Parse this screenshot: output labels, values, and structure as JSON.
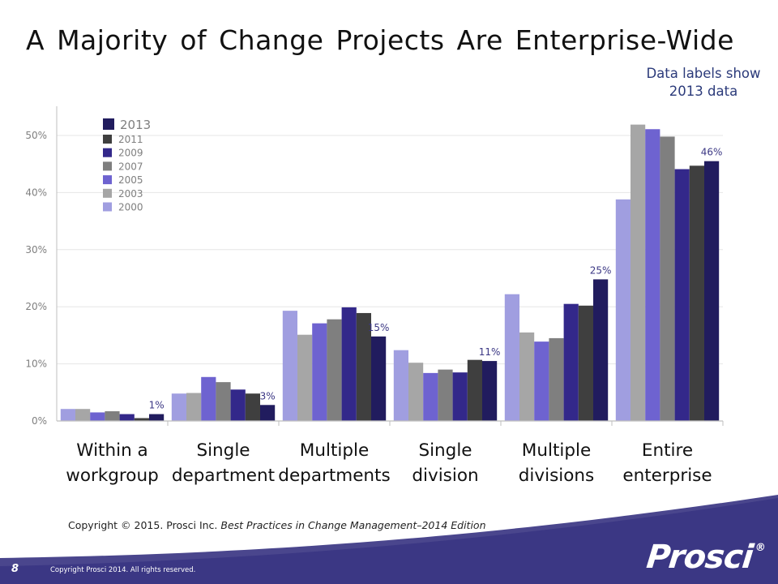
{
  "slide": {
    "title": "A Majority of Change Projects Are Enterprise-Wide",
    "label_note": [
      "Data labels show",
      "2013 data"
    ],
    "copyright_prefix": "Copyright © 2015. Prosci Inc.",
    "copyright_source": "Best Practices in Change Management–2014 Edition",
    "slide_number": "8",
    "footer_copyright": "Copyright Prosci 2014. All rights reserved.",
    "brand": "Prosci",
    "brand_mark": "®"
  },
  "chart_data": {
    "type": "bar",
    "title": "",
    "xlabel": "",
    "ylabel": "",
    "ylim": [
      0,
      55
    ],
    "yticks": [
      0,
      10,
      20,
      30,
      40,
      50
    ],
    "ytick_labels": [
      "0%",
      "10%",
      "20%",
      "30%",
      "40%",
      "50%"
    ],
    "categories": [
      [
        "Within a",
        "workgroup"
      ],
      [
        "Single",
        "department"
      ],
      [
        "Multiple",
        "departments"
      ],
      [
        "Single",
        "division"
      ],
      [
        "Multiple",
        "divisions"
      ],
      [
        "Entire",
        "enterprise"
      ]
    ],
    "grid": true,
    "legend_position": "top-left",
    "series": [
      {
        "name": "2000",
        "color": "#a09ee0",
        "values": [
          2.1,
          4.8,
          19.3,
          12.4,
          22.2,
          38.8
        ]
      },
      {
        "name": "2003",
        "color": "#a6a6a6",
        "values": [
          2.1,
          4.9,
          15.1,
          10.2,
          15.5,
          51.9
        ]
      },
      {
        "name": "2005",
        "color": "#6e63d0",
        "values": [
          1.5,
          7.7,
          17.1,
          8.4,
          13.9,
          51.1
        ]
      },
      {
        "name": "2007",
        "color": "#7f7f7f",
        "values": [
          1.7,
          6.8,
          17.8,
          9.0,
          14.5,
          49.8
        ]
      },
      {
        "name": "2009",
        "color": "#33288a",
        "values": [
          1.2,
          5.5,
          19.9,
          8.5,
          20.5,
          44.1
        ]
      },
      {
        "name": "2011",
        "color": "#3f3f3f",
        "values": [
          0.5,
          4.8,
          18.9,
          10.7,
          20.2,
          44.7
        ]
      },
      {
        "name": "2013",
        "color": "#211c5e",
        "values": [
          1.2,
          2.8,
          14.8,
          10.5,
          24.8,
          45.5
        ]
      }
    ],
    "legend_order": [
      "2013",
      "2011",
      "2009",
      "2007",
      "2005",
      "2003",
      "2000"
    ],
    "data_labels": [
      "1%",
      "3%",
      "15%",
      "11%",
      "25%",
      "46%"
    ]
  }
}
